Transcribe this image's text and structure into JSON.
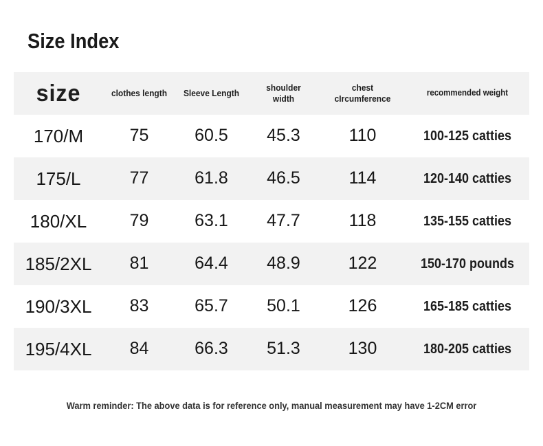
{
  "page": {
    "title": "Size Index",
    "footer": "Warm reminder: The above data is for reference only, manual measurement may have 1-2CM error"
  },
  "colors": {
    "band_bg": "#f2f2f2",
    "text_primary": "#161616",
    "footer_text": "#333333"
  },
  "table": {
    "columns": [
      "size",
      "clothes length",
      "Sleeve Length",
      "shoulder width",
      "chest cIrcumference",
      "recommended weight"
    ],
    "rows": [
      [
        "170/M",
        "75",
        "60.5",
        "45.3",
        "110",
        "100-125 catties"
      ],
      [
        "175/L",
        "77",
        "61.8",
        "46.5",
        "114",
        "120-140 catties"
      ],
      [
        "180/XL",
        "79",
        "63.1",
        "47.7",
        "118",
        "135-155 catties"
      ],
      [
        "185/2XL",
        "81",
        "64.4",
        "48.9",
        "122",
        "150-170 pounds"
      ],
      [
        "190/3XL",
        "83",
        "65.7",
        "50.1",
        "126",
        "165-185 catties"
      ],
      [
        "195/4XL",
        "84",
        "66.3",
        "51.3",
        "130",
        "180-205 catties"
      ]
    ]
  }
}
